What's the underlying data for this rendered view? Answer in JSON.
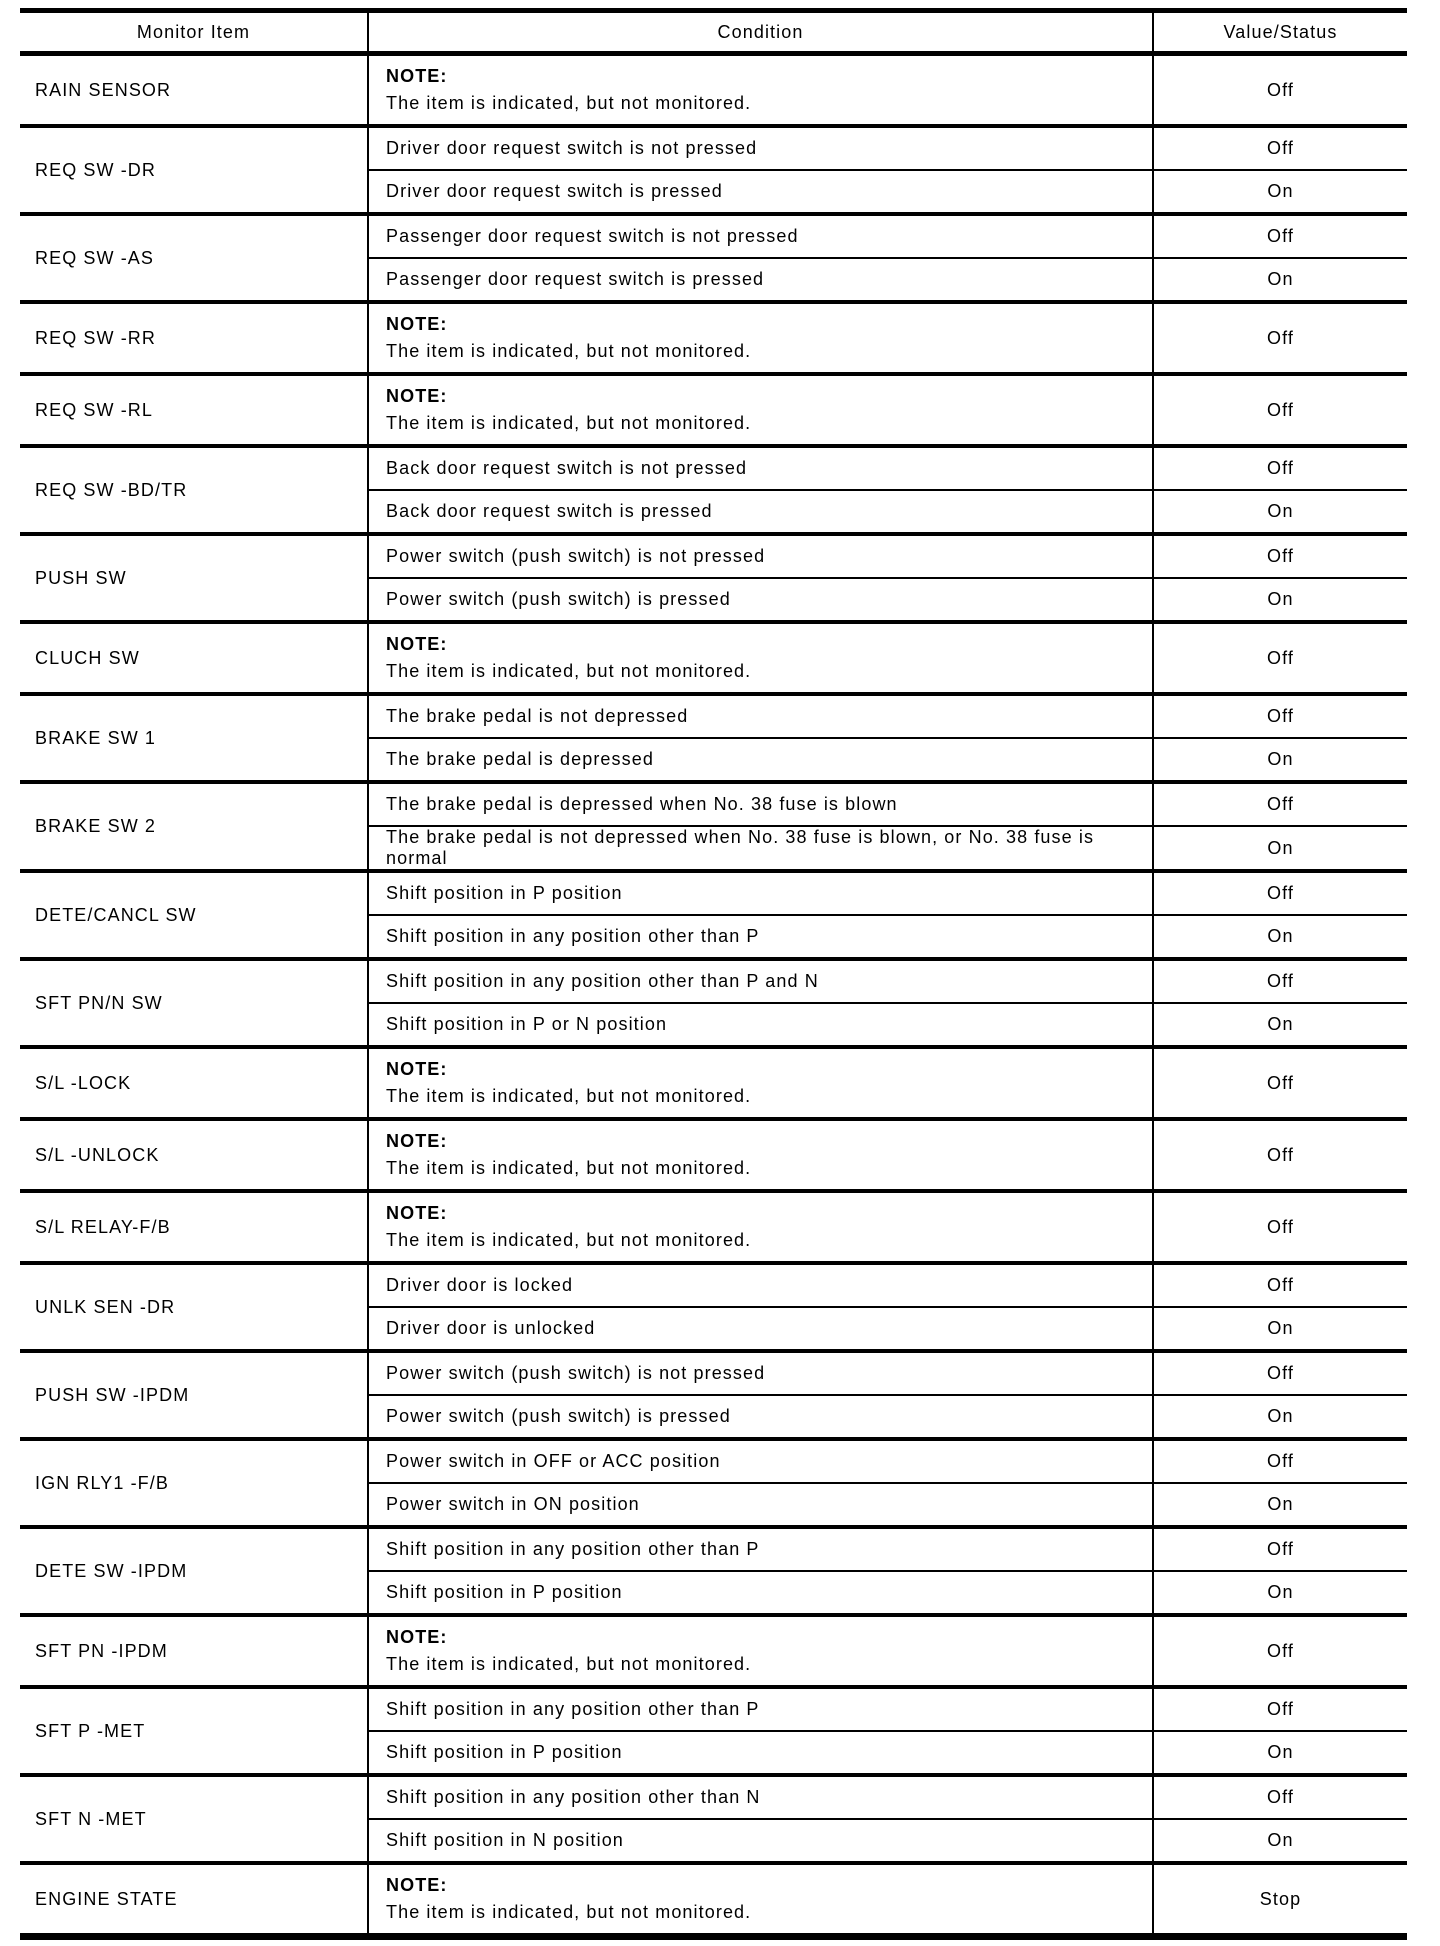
{
  "table": {
    "headers": [
      "Monitor Item",
      "Condition",
      "Value/Status"
    ],
    "note_label": "NOTE:",
    "groups": [
      {
        "item": "RAIN SENSOR",
        "rows": [
          {
            "note": true,
            "condition": "The item is indicated, but not monitored.",
            "value": "Off"
          }
        ]
      },
      {
        "item": "REQ SW -DR",
        "rows": [
          {
            "condition": "Driver door request switch is not pressed",
            "value": "Off"
          },
          {
            "condition": "Driver door request switch is pressed",
            "value": "On"
          }
        ]
      },
      {
        "item": "REQ SW -AS",
        "rows": [
          {
            "condition": "Passenger door request switch is not pressed",
            "value": "Off"
          },
          {
            "condition": "Passenger door request switch is pressed",
            "value": "On"
          }
        ]
      },
      {
        "item": "REQ SW -RR",
        "rows": [
          {
            "note": true,
            "condition": "The item is indicated, but not monitored.",
            "value": "Off"
          }
        ]
      },
      {
        "item": "REQ SW -RL",
        "rows": [
          {
            "note": true,
            "condition": "The item is indicated, but not monitored.",
            "value": "Off"
          }
        ]
      },
      {
        "item": "REQ SW -BD/TR",
        "rows": [
          {
            "condition": "Back door request switch is not pressed",
            "value": "Off"
          },
          {
            "condition": "Back door request switch is pressed",
            "value": "On"
          }
        ]
      },
      {
        "item": "PUSH SW",
        "rows": [
          {
            "condition": "Power switch (push switch) is not pressed",
            "value": "Off"
          },
          {
            "condition": "Power switch (push switch) is pressed",
            "value": "On"
          }
        ]
      },
      {
        "item": "CLUCH SW",
        "rows": [
          {
            "note": true,
            "condition": "The item is indicated, but not monitored.",
            "value": "Off"
          }
        ]
      },
      {
        "item": "BRAKE SW 1",
        "rows": [
          {
            "condition": "The brake pedal is not depressed",
            "value": "Off"
          },
          {
            "condition": "The brake pedal is depressed",
            "value": "On"
          }
        ]
      },
      {
        "item": "BRAKE SW 2",
        "rows": [
          {
            "condition": "The brake pedal is depressed when No. 38 fuse is blown",
            "value": "Off"
          },
          {
            "condition": "The brake pedal is not depressed when No. 38 fuse is blown, or No. 38 fuse is normal",
            "value": "On"
          }
        ]
      },
      {
        "item": "DETE/CANCL SW",
        "rows": [
          {
            "condition": "Shift position in P position",
            "value": "Off"
          },
          {
            "condition": "Shift position in any position other than P",
            "value": "On"
          }
        ]
      },
      {
        "item": "SFT PN/N SW",
        "rows": [
          {
            "condition": "Shift position in any position other than P and N",
            "value": "Off"
          },
          {
            "condition": "Shift position in P or N position",
            "value": "On"
          }
        ]
      },
      {
        "item": "S/L -LOCK",
        "rows": [
          {
            "note": true,
            "condition": "The item is indicated, but not monitored.",
            "value": "Off"
          }
        ]
      },
      {
        "item": "S/L -UNLOCK",
        "rows": [
          {
            "note": true,
            "condition": "The item is indicated, but not monitored.",
            "value": "Off"
          }
        ]
      },
      {
        "item": "S/L RELAY-F/B",
        "rows": [
          {
            "note": true,
            "condition": "The item is indicated, but not monitored.",
            "value": "Off"
          }
        ]
      },
      {
        "item": "UNLK SEN -DR",
        "rows": [
          {
            "condition": "Driver door is locked",
            "value": "Off"
          },
          {
            "condition": "Driver door is unlocked",
            "value": "On"
          }
        ]
      },
      {
        "item": "PUSH SW -IPDM",
        "rows": [
          {
            "condition": "Power switch (push switch) is not pressed",
            "value": "Off"
          },
          {
            "condition": "Power switch (push switch) is pressed",
            "value": "On"
          }
        ]
      },
      {
        "item": "IGN RLY1 -F/B",
        "rows": [
          {
            "condition": "Power switch in OFF or ACC position",
            "value": "Off"
          },
          {
            "condition": "Power switch in ON position",
            "value": "On"
          }
        ]
      },
      {
        "item": "DETE SW -IPDM",
        "rows": [
          {
            "condition": "Shift position in any position other than P",
            "value": "Off"
          },
          {
            "condition": "Shift position in P position",
            "value": "On"
          }
        ]
      },
      {
        "item": "SFT PN -IPDM",
        "rows": [
          {
            "note": true,
            "condition": "The item is indicated, but not monitored.",
            "value": "Off"
          }
        ]
      },
      {
        "item": "SFT P -MET",
        "rows": [
          {
            "condition": "Shift position in any position other than P",
            "value": "Off"
          },
          {
            "condition": "Shift position in P position",
            "value": "On"
          }
        ]
      },
      {
        "item": "SFT N -MET",
        "rows": [
          {
            "condition": "Shift position in any position other than N",
            "value": "Off"
          },
          {
            "condition": "Shift position in N position",
            "value": "On"
          }
        ]
      },
      {
        "item": "ENGINE STATE",
        "rows": [
          {
            "note": true,
            "condition": "The item is indicated, but not monitored.",
            "value": "Stop"
          }
        ]
      }
    ]
  }
}
